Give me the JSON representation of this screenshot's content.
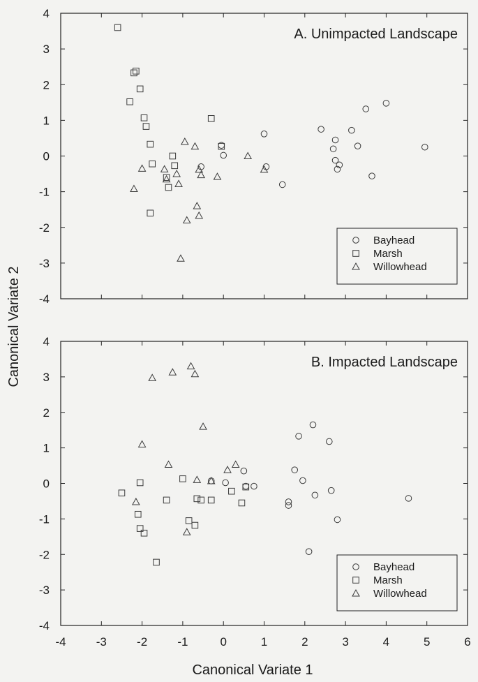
{
  "chart_data": [
    {
      "type": "scatter",
      "title": "A. Unimpacted Landscape",
      "xlim": [
        -4,
        6
      ],
      "ylim": [
        -4,
        4
      ],
      "yticks": [
        "4",
        "3",
        "2",
        "1",
        "0",
        "-1",
        "-2",
        "-3",
        "-4"
      ],
      "legend": "bottom-right",
      "series": [
        {
          "name": "Bayhead",
          "marker": "circle",
          "points": [
            [
              -0.55,
              -0.3
            ],
            [
              -0.05,
              0.3
            ],
            [
              0.0,
              0.02
            ],
            [
              1.0,
              0.62
            ],
            [
              1.05,
              -0.3
            ],
            [
              1.45,
              -0.8
            ],
            [
              2.4,
              0.75
            ],
            [
              2.7,
              0.2
            ],
            [
              2.75,
              0.45
            ],
            [
              2.75,
              -0.12
            ],
            [
              2.8,
              -0.37
            ],
            [
              2.85,
              -0.25
            ],
            [
              3.15,
              0.72
            ],
            [
              3.3,
              0.28
            ],
            [
              3.5,
              1.32
            ],
            [
              3.65,
              -0.56
            ],
            [
              4.0,
              1.48
            ],
            [
              4.95,
              0.25
            ]
          ]
        },
        {
          "name": "Marsh",
          "marker": "square",
          "points": [
            [
              -2.6,
              3.6
            ],
            [
              -2.2,
              2.33
            ],
            [
              -2.15,
              2.38
            ],
            [
              -2.05,
              1.88
            ],
            [
              -2.3,
              1.52
            ],
            [
              -1.95,
              1.07
            ],
            [
              -1.9,
              0.83
            ],
            [
              -1.8,
              0.33
            ],
            [
              -1.75,
              -0.22
            ],
            [
              -1.25,
              0.0
            ],
            [
              -1.2,
              -0.27
            ],
            [
              -1.4,
              -0.6
            ],
            [
              -1.35,
              -0.88
            ],
            [
              -1.8,
              -1.6
            ],
            [
              -0.3,
              1.05
            ],
            [
              -0.05,
              0.27
            ]
          ]
        },
        {
          "name": "Willowhead",
          "marker": "triangle",
          "points": [
            [
              -2.0,
              -0.35
            ],
            [
              -2.2,
              -0.92
            ],
            [
              -1.45,
              -0.37
            ],
            [
              -1.4,
              -0.65
            ],
            [
              -1.15,
              -0.5
            ],
            [
              -1.1,
              -0.78
            ],
            [
              -0.95,
              0.4
            ],
            [
              -0.9,
              -1.8
            ],
            [
              -0.7,
              0.27
            ],
            [
              -0.6,
              -0.38
            ],
            [
              -0.55,
              -0.53
            ],
            [
              -0.65,
              -1.4
            ],
            [
              -0.6,
              -1.67
            ],
            [
              -1.05,
              -2.87
            ],
            [
              -0.15,
              -0.58
            ],
            [
              0.6,
              0.0
            ],
            [
              1.0,
              -0.38
            ]
          ]
        }
      ]
    },
    {
      "type": "scatter",
      "title": "B. Impacted Landscape",
      "xlim": [
        -4,
        6
      ],
      "ylim": [
        -4,
        4
      ],
      "xticks": [
        "-4",
        "-3",
        "-2",
        "-1",
        "0",
        "1",
        "2",
        "3",
        "4",
        "5",
        "6"
      ],
      "yticks": [
        "4",
        "3",
        "2",
        "1",
        "0",
        "-1",
        "-2",
        "-3",
        "-4"
      ],
      "legend": "bottom-right",
      "series": [
        {
          "name": "Bayhead",
          "marker": "circle",
          "points": [
            [
              -0.3,
              0.07
            ],
            [
              0.05,
              0.02
            ],
            [
              0.5,
              0.35
            ],
            [
              0.55,
              -0.08
            ],
            [
              0.75,
              -0.08
            ],
            [
              1.6,
              -0.52
            ],
            [
              1.6,
              -0.62
            ],
            [
              1.75,
              0.38
            ],
            [
              1.85,
              1.33
            ],
            [
              1.95,
              0.08
            ],
            [
              2.1,
              -1.92
            ],
            [
              2.2,
              1.65
            ],
            [
              2.25,
              -0.33
            ],
            [
              2.6,
              1.18
            ],
            [
              2.65,
              -0.2
            ],
            [
              2.8,
              -1.02
            ],
            [
              4.55,
              -0.42
            ]
          ]
        },
        {
          "name": "Marsh",
          "marker": "square",
          "points": [
            [
              -2.5,
              -0.27
            ],
            [
              -2.05,
              0.02
            ],
            [
              -2.1,
              -0.87
            ],
            [
              -2.05,
              -1.27
            ],
            [
              -1.95,
              -1.4
            ],
            [
              -1.65,
              -2.22
            ],
            [
              -1.4,
              -0.47
            ],
            [
              -1.0,
              0.13
            ],
            [
              -0.85,
              -1.05
            ],
            [
              -0.7,
              -1.18
            ],
            [
              -0.65,
              -0.43
            ],
            [
              -0.55,
              -0.47
            ],
            [
              -0.3,
              -0.47
            ],
            [
              0.2,
              -0.22
            ],
            [
              0.45,
              -0.55
            ],
            [
              0.55,
              -0.1
            ]
          ]
        },
        {
          "name": "Willowhead",
          "marker": "triangle",
          "points": [
            [
              -1.75,
              2.97
            ],
            [
              -1.25,
              3.13
            ],
            [
              -0.8,
              3.3
            ],
            [
              -0.7,
              3.08
            ],
            [
              -0.5,
              1.6
            ],
            [
              -2.0,
              1.1
            ],
            [
              -1.35,
              0.53
            ],
            [
              -2.15,
              -0.52
            ],
            [
              -0.9,
              -1.37
            ],
            [
              -0.65,
              0.1
            ],
            [
              0.1,
              0.38
            ],
            [
              0.3,
              0.53
            ],
            [
              -0.3,
              0.07
            ]
          ]
        }
      ]
    }
  ],
  "xlabel": "Canonical Variate 1",
  "ylabel": "Canonical Variate 2"
}
